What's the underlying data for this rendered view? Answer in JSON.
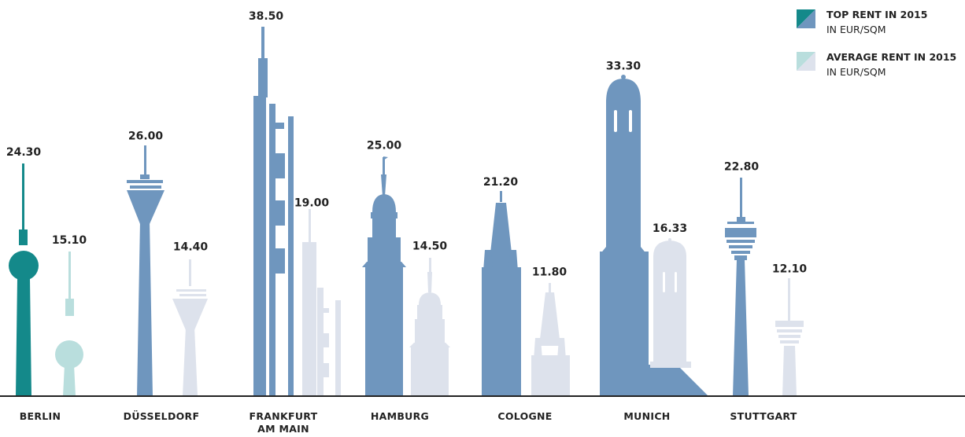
{
  "chart_data": {
    "type": "bar",
    "title": "",
    "xlabel": "",
    "ylabel": "",
    "categories": [
      "BERLIN",
      "DÜSSELDORF",
      "FRANKFURT AM MAIN",
      "HAMBURG",
      "COLOGNE",
      "MUNICH",
      "STUTTGART"
    ],
    "category_lines": [
      [
        "BERLIN"
      ],
      [
        "DÜSSELDORF"
      ],
      [
        "FRANKFURT",
        "AM MAIN"
      ],
      [
        "HAMBURG"
      ],
      [
        "COLOGNE"
      ],
      [
        "MUNICH"
      ],
      [
        "STUTTGART"
      ]
    ],
    "series": [
      {
        "name": "TOP RENT IN 2015",
        "unit": "IN EUR/SQM",
        "values": [
          24.3,
          26.0,
          38.5,
          25.0,
          21.2,
          33.3,
          22.8
        ],
        "labels": [
          "24.30",
          "26.00",
          "38.50",
          "25.00",
          "21.20",
          "33.30",
          "22.80"
        ]
      },
      {
        "name": "AVERAGE RENT IN 2015",
        "unit": "IN EUR/SQM",
        "values": [
          15.1,
          14.4,
          19.0,
          14.5,
          11.8,
          16.33,
          12.1
        ],
        "labels": [
          "15.10",
          "14.40",
          "19.00",
          "14.50",
          "11.80",
          "16.33",
          "12.10"
        ]
      }
    ],
    "ylim": [
      0,
      40
    ],
    "grid": false,
    "legend_position": "top-right",
    "colors": {
      "top_rent": "#6f96be",
      "top_rent_berlin": "#14898a",
      "average_rent": "#dde2ec",
      "average_rent_berlin": "#b9dedd",
      "baseline": "#222222"
    }
  }
}
